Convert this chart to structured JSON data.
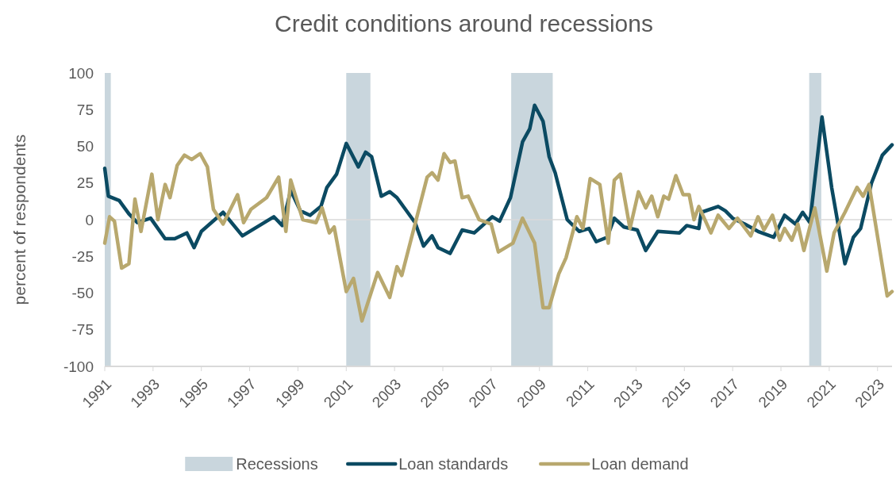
{
  "chart_data": {
    "type": "line",
    "title": "Credit conditions around recessions",
    "ylabel": "percent of respondents",
    "xlim": [
      1991,
      2023.6
    ],
    "xticks": [
      1991,
      1993,
      1995,
      1997,
      1999,
      2001,
      2003,
      2005,
      2007,
      2009,
      2011,
      2013,
      2015,
      2017,
      2019,
      2021,
      2023
    ],
    "ylim": [
      -100,
      100
    ],
    "yticks": [
      -100,
      -75,
      -50,
      -25,
      0,
      25,
      50,
      75,
      100
    ],
    "grid": false,
    "legend": "bottom",
    "line_style": "solid",
    "marker": "none",
    "ref_lines": [
      {
        "axis": "y",
        "value": 0,
        "color": "#d9d9d9"
      }
    ],
    "bands": [
      {
        "axis": "x",
        "from": 1991,
        "to": 1991.25,
        "label": "Recessions",
        "color": "#c9d6dd"
      },
      {
        "axis": "x",
        "from": 2001,
        "to": 2002,
        "color": "#c9d6dd"
      },
      {
        "axis": "x",
        "from": 2007.83,
        "to": 2009.55,
        "color": "#c9d6dd"
      },
      {
        "axis": "x",
        "from": 2020.17,
        "to": 2020.67,
        "color": "#c9d6dd"
      }
    ],
    "series": [
      {
        "name": "Loan standards",
        "color": "#0b4a62",
        "x": [
          1991,
          1991.15,
          1991.6,
          1992,
          1992.35,
          1992.9,
          1993.5,
          1993.9,
          1994.4,
          1994.7,
          1995,
          1995.9,
          1996.7,
          1997.5,
          1998,
          1998.35,
          1998.7,
          1999.1,
          1999.5,
          1999.95,
          2000.2,
          2000.6,
          2001,
          2001.5,
          2001.8,
          2002.05,
          2002.45,
          2002.8,
          2003.1,
          2003.85,
          2004.2,
          2004.55,
          2004.8,
          2005.3,
          2005.8,
          2006.3,
          2007.05,
          2007.35,
          2007.8,
          2008.3,
          2008.6,
          2008.8,
          2009.15,
          2009.4,
          2009.65,
          2010.15,
          2010.65,
          2011.05,
          2011.35,
          2011.8,
          2012.1,
          2012.5,
          2013.05,
          2013.4,
          2013.9,
          2014.8,
          2015.1,
          2015.6,
          2015.7,
          2016.4,
          2016.7,
          2017,
          2017.5,
          2018.05,
          2018.7,
          2019.15,
          2019.6,
          2019.9,
          2020.2,
          2020.7,
          2021.1,
          2021.65,
          2022,
          2022.3,
          2022.75,
          2023.2,
          2023.6
        ],
        "values": [
          35,
          16,
          13,
          4,
          -2,
          1,
          -13,
          -13,
          -9,
          -19,
          -8,
          5,
          -11,
          -3,
          2,
          -4,
          20,
          6,
          3,
          9,
          22,
          31,
          52,
          36,
          46,
          43,
          16,
          19,
          15,
          -2,
          -18,
          -11,
          -19,
          -23,
          -7,
          -9,
          2,
          -1,
          15,
          53,
          62,
          78,
          67,
          43,
          32,
          0,
          -8,
          -6,
          -15,
          -12,
          1,
          -5,
          -7,
          -21,
          -8,
          -9,
          -4,
          -6,
          5,
          9,
          6,
          1,
          -3,
          -8,
          -12,
          3,
          -3,
          5,
          -2,
          70,
          22,
          -30,
          -12,
          -6,
          25,
          44,
          51
        ]
      },
      {
        "name": "Loan demand",
        "color": "#b8a86e",
        "x": [
          1991,
          1991.2,
          1991.4,
          1991.7,
          1992,
          1992.25,
          1992.5,
          1992.95,
          1993.2,
          1993.5,
          1993.7,
          1994,
          1994.3,
          1994.6,
          1994.95,
          1995.25,
          1995.5,
          1995.9,
          1996.5,
          1996.75,
          1997.05,
          1997.7,
          1998.2,
          1998.5,
          1998.7,
          1999.2,
          1999.75,
          2000,
          2000.3,
          2000.5,
          2001,
          2001.3,
          2001.65,
          2002.3,
          2002.8,
          2003.1,
          2003.3,
          2004.35,
          2004.55,
          2004.8,
          2005.05,
          2005.3,
          2005.5,
          2005.8,
          2006.05,
          2006.5,
          2007,
          2007.3,
          2007.9,
          2008.3,
          2008.8,
          2009.15,
          2009.4,
          2009.8,
          2010.1,
          2010.55,
          2010.8,
          2011.1,
          2011.5,
          2011.85,
          2012.1,
          2012.35,
          2012.75,
          2013.1,
          2013.4,
          2013.65,
          2013.9,
          2014.15,
          2014.35,
          2014.65,
          2014.95,
          2015.2,
          2015.4,
          2015.6,
          2016.1,
          2016.4,
          2016.85,
          2017.2,
          2017.75,
          2018.05,
          2018.3,
          2018.65,
          2018.95,
          2019.15,
          2019.45,
          2019.7,
          2019.95,
          2020.4,
          2020.9,
          2021.2,
          2021.65,
          2022.15,
          2022.4,
          2022.65,
          2023.4,
          2023.6
        ],
        "values": [
          -16,
          2,
          -1,
          -33,
          -30,
          14,
          -8,
          31,
          0,
          24,
          15,
          37,
          44,
          41,
          45,
          36,
          7,
          -3,
          17,
          -2,
          7,
          15,
          29,
          -8,
          27,
          0,
          -2,
          8,
          -9,
          -5,
          -49,
          -40,
          -69,
          -36,
          -53,
          -32,
          -38,
          29,
          32,
          27,
          45,
          39,
          40,
          15,
          16,
          0,
          -3,
          -22,
          -16,
          1,
          -16,
          -60,
          -60,
          -37,
          -26,
          2,
          -6,
          28,
          24,
          -16,
          27,
          31,
          -6,
          19,
          8,
          16,
          2,
          16,
          14,
          30,
          17,
          17,
          0,
          9,
          -9,
          3,
          -6,
          1,
          -11,
          2,
          -7,
          3,
          -14,
          -6,
          -14,
          -3,
          -21,
          8,
          -35,
          -9,
          5,
          22,
          16,
          24,
          -52,
          -49
        ]
      }
    ]
  }
}
